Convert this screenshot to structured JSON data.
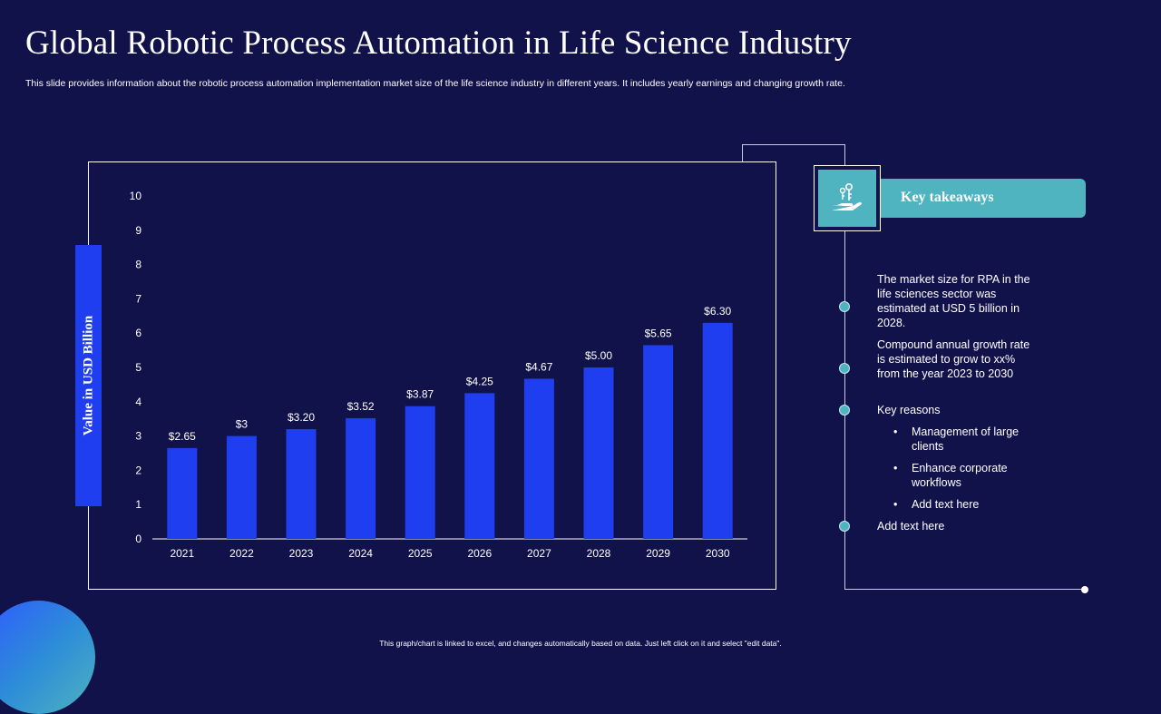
{
  "title": "Global Robotic Process Automation in Life Science Industry",
  "subtitle": "This slide provides information about the robotic process automation implementation  market size of the life science industry in different years. It includes yearly earnings and changing growth rate.",
  "chart_data": {
    "type": "bar",
    "categories": [
      "2021",
      "2022",
      "2023",
      "2024",
      "2025",
      "2026",
      "2027",
      "2028",
      "2029",
      "2030"
    ],
    "values": [
      2.65,
      3,
      3.2,
      3.52,
      3.87,
      4.25,
      4.67,
      5.0,
      5.65,
      6.3
    ],
    "data_labels": [
      "$2.65",
      "$3",
      "$3.20",
      "$3.52",
      "$3.87",
      "$4.25",
      "$4.67",
      "$5.00",
      "$5.65",
      "$6.30"
    ],
    "ylabel": "Value in USD Billion",
    "ylim": [
      0,
      10
    ],
    "yticks": [
      0,
      1,
      2,
      3,
      4,
      5,
      6,
      7,
      8,
      9,
      10
    ],
    "bar_color": "#1f3ef0",
    "grid": false
  },
  "key_takeaways": {
    "header": "Key takeaways",
    "icon": "hand-with-keys-icon",
    "items": [
      "The market size for RPA in the life sciences sector was estimated at USD 5 billion in 2028.",
      "Compound annual growth rate is estimated to grow to xx% from the year 2023 to 2030",
      "Key reasons"
    ],
    "sub_items": [
      "Management of large clients",
      "Enhance corporate workflows",
      "Add text here"
    ],
    "sub_bullet": "•",
    "last_item": "Add text here"
  },
  "footer": "This graph/chart is linked to excel, and changes automatically based on data. Just left click on it and select \"edit data\".",
  "colors": {
    "background": "#11124a",
    "accent": "#4fb3c0",
    "bar": "#1f3ef0"
  }
}
